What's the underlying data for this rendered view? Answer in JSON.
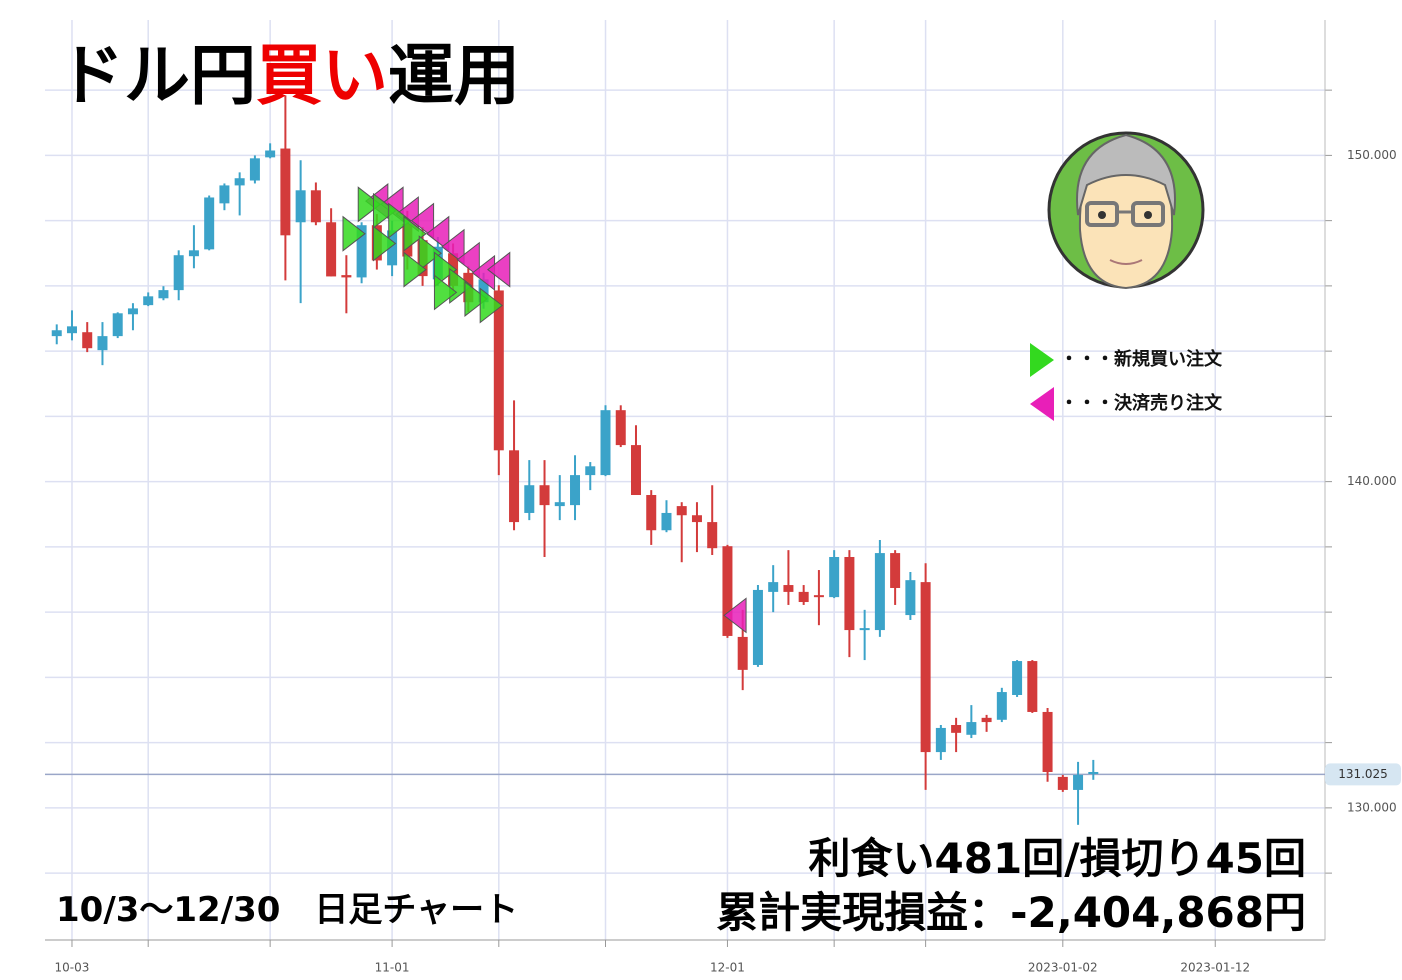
{
  "chart_data": {
    "type": "candlestick",
    "title_parts": [
      "ドル円",
      "買い",
      "運用"
    ],
    "subtitle": "10/3～12/30　日足チャート",
    "stats": [
      "利食い481回/損切り45回",
      "累計実現損益：-2,404,868円"
    ],
    "legend": [
      {
        "name": "・・・新規買い注文",
        "color": "#33d91f"
      },
      {
        "name": "・・・決済売り注文",
        "color": "#e81fb8"
      }
    ],
    "up_color": "#3ba3c9",
    "down_color": "#d33b3b",
    "x": [
      -1,
      0,
      1,
      2,
      3,
      4,
      5,
      6,
      7,
      8,
      9,
      10,
      11,
      12,
      13,
      14,
      15,
      16,
      17,
      18,
      19,
      20,
      21,
      22,
      23,
      24,
      25,
      26,
      27,
      28,
      29,
      30,
      31,
      32,
      33,
      34,
      35,
      36,
      37,
      38,
      39,
      40,
      41,
      42,
      43,
      44,
      45,
      46,
      47,
      48,
      49,
      50,
      51,
      52,
      53,
      54,
      55,
      56,
      57,
      58,
      59,
      60,
      61,
      62,
      63,
      64,
      65,
      66,
      67
    ],
    "open": [
      144.46,
      144.55,
      144.58,
      144.03,
      144.46,
      145.13,
      145.41,
      145.62,
      145.87,
      146.91,
      147.12,
      148.53,
      149.08,
      149.23,
      149.94,
      150.21,
      147.95,
      148.93,
      147.95,
      146.33,
      146.26,
      147.86,
      146.63,
      147.9,
      147.4,
      146.2,
      147.0,
      146.4,
      145.5,
      145.86,
      140.96,
      139.04,
      139.89,
      139.25,
      139.28,
      140.2,
      140.2,
      142.19,
      141.12,
      139.59,
      138.51,
      139.25,
      138.97,
      138.76,
      138.02,
      135.24,
      134.38,
      136.62,
      136.83,
      136.62,
      136.52,
      136.46,
      137.69,
      135.45,
      135.45,
      137.81,
      135.91,
      136.92,
      131.71,
      132.54,
      132.24,
      132.76,
      132.7,
      133.46,
      134.5,
      132.94,
      130.95,
      130.55,
      131.04
    ],
    "high": [
      144.82,
      145.25,
      144.89,
      144.89,
      145.19,
      145.47,
      145.8,
      145.99,
      147.09,
      147.86,
      148.77,
      149.14,
      149.48,
      150.0,
      150.37,
      151.84,
      149.85,
      149.17,
      148.38,
      146.94,
      147.95,
      148.2,
      148.0,
      148.3,
      147.8,
      147.5,
      147.3,
      146.6,
      146.4,
      146.02,
      142.49,
      140.66,
      140.66,
      140.2,
      140.81,
      140.6,
      142.34,
      142.34,
      141.73,
      139.74,
      139.43,
      139.37,
      139.37,
      139.89,
      138.06,
      136.07,
      136.83,
      137.44,
      137.9,
      136.83,
      137.29,
      137.9,
      137.9,
      136.07,
      138.21,
      137.9,
      137.23,
      137.5,
      132.54,
      132.76,
      133.15,
      132.85,
      133.68,
      134.53,
      134.53,
      133.06,
      131.01,
      131.41,
      131.47
    ],
    "low": [
      144.21,
      144.33,
      143.97,
      143.57,
      144.4,
      144.64,
      145.38,
      145.56,
      145.56,
      146.54,
      147.09,
      148.32,
      148.16,
      149.14,
      149.91,
      146.17,
      145.47,
      147.86,
      146.29,
      145.16,
      146.08,
      146.5,
      146.3,
      146.5,
      146.0,
      146.0,
      145.7,
      145.2,
      145.3,
      140.2,
      138.51,
      138.82,
      137.69,
      138.82,
      138.82,
      139.74,
      140.17,
      141.06,
      139.59,
      138.06,
      138.45,
      137.53,
      137.84,
      137.75,
      135.21,
      133.61,
      134.32,
      136.0,
      136.22,
      136.22,
      135.6,
      136.43,
      134.62,
      134.53,
      135.24,
      136.22,
      135.76,
      130.55,
      131.47,
      131.71,
      132.14,
      132.33,
      132.63,
      133.4,
      132.91,
      130.8,
      130.49,
      129.48,
      130.86
    ],
    "close": [
      144.64,
      144.76,
      144.09,
      144.46,
      145.16,
      145.31,
      145.68,
      145.87,
      146.94,
      147.09,
      148.71,
      149.08,
      149.3,
      149.91,
      150.15,
      147.55,
      148.93,
      147.95,
      146.29,
      146.26,
      147.86,
      146.78,
      147.7,
      146.9,
      146.3,
      147.2,
      146.0,
      145.5,
      146.2,
      140.96,
      138.76,
      139.89,
      139.28,
      139.37,
      140.2,
      140.47,
      142.19,
      141.12,
      139.59,
      138.51,
      139.04,
      138.97,
      138.76,
      137.96,
      135.27,
      134.23,
      136.68,
      136.92,
      136.62,
      136.31,
      136.46,
      137.69,
      135.45,
      135.51,
      137.81,
      136.74,
      136.98,
      131.71,
      132.45,
      132.3,
      132.63,
      132.63,
      133.55,
      134.5,
      132.94,
      131.1,
      130.55,
      131.01,
      131.1
    ],
    "buy_orders": {
      "x": [
        18.5,
        19.5,
        20.5,
        21.5,
        22.5,
        23.5,
        24.5,
        25.5,
        26.5,
        27.5,
        20.5,
        22.5,
        24.5
      ],
      "y": [
        147.6,
        148.5,
        148.3,
        148.0,
        147.6,
        147.0,
        146.5,
        146.0,
        145.6,
        145.4,
        147.3,
        146.5,
        145.8
      ]
    },
    "sell_orders": {
      "x": [
        20,
        21,
        22,
        23,
        24,
        25,
        26,
        27,
        28,
        43.5
      ],
      "y": [
        148.6,
        148.5,
        148.2,
        148.0,
        147.6,
        147.2,
        146.8,
        146.4,
        146.5,
        135.9
      ]
    },
    "last_price": 131.025,
    "xlim": [
      -1.77,
      82.2
    ],
    "ylim": [
      125.95,
      154.15
    ],
    "xticks": [
      {
        "value": 0,
        "label": "10-03"
      },
      {
        "value": 21,
        "label": "11-01"
      },
      {
        "value": 43,
        "label": "12-01"
      },
      {
        "value": 65,
        "label": "2023-01-02"
      },
      {
        "value": 75,
        "label": "2023-01-12"
      }
    ],
    "xgrid": [
      0,
      5,
      13,
      21,
      28,
      35,
      43,
      50,
      56,
      65,
      75
    ],
    "yticks": [
      {
        "value": 130,
        "label": "130.000"
      },
      {
        "value": 140,
        "label": "140.000"
      },
      {
        "value": 150,
        "label": "150.000"
      }
    ],
    "ygrid": [
      128,
      130,
      132,
      134,
      136,
      138,
      140,
      142,
      144,
      146,
      148,
      150,
      152
    ],
    "grid": true
  }
}
